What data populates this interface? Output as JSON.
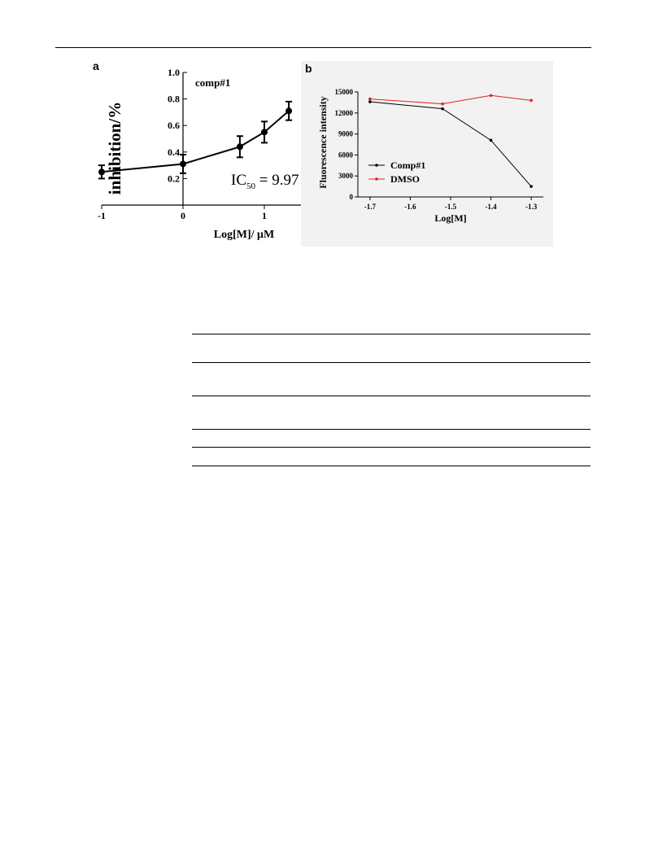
{
  "chart_data": [
    {
      "panel": "a",
      "type": "line",
      "series": [
        {
          "name": "comp#1",
          "x": [
            -1,
            0,
            0.699,
            1,
            1.301
          ],
          "y": [
            0.25,
            0.31,
            0.44,
            0.55,
            0.71
          ],
          "yerr": [
            0.05,
            0.07,
            0.08,
            0.08,
            0.07
          ]
        }
      ],
      "series_label": "comp#1",
      "ylabel": "inhibition/%",
      "xlabel": "Log[M]/ μM",
      "xlim": [
        -1,
        1.5
      ],
      "ylim": [
        0,
        1.0
      ],
      "yticks": [
        0.2,
        0.4,
        0.6,
        0.8,
        1.0
      ],
      "ytick_labels": [
        "0.2",
        "0.4",
        "0.6",
        "0.8",
        "1.0"
      ],
      "xticks": [
        -1,
        0,
        1
      ],
      "xtick_labels": [
        "-1",
        "0",
        "1"
      ],
      "annotation": {
        "prefix": "IC",
        "sub": "50",
        "suffix": " = 9.97"
      },
      "grid": false
    },
    {
      "panel": "b",
      "type": "line",
      "series": [
        {
          "name": "Comp#1",
          "color": "#000000",
          "x": [
            -1.7,
            -1.52,
            -1.4,
            -1.3
          ],
          "y": [
            13600,
            12600,
            8100,
            1500
          ]
        },
        {
          "name": "DMSO",
          "color": "#e02020",
          "x": [
            -1.7,
            -1.52,
            -1.4,
            -1.3
          ],
          "y": [
            14000,
            13300,
            14500,
            13800
          ]
        }
      ],
      "xlabel": "Log[M]",
      "ylabel": "Fluorescence intensity",
      "xlim": [
        -1.73,
        -1.27
      ],
      "ylim": [
        0,
        15000
      ],
      "xticks": [
        -1.7,
        -1.6,
        -1.5,
        -1.4,
        -1.3
      ],
      "xtick_labels": [
        "-1.7",
        "-1.6",
        "-1.5",
        "-1.4",
        "-1.3"
      ],
      "yticks": [
        0,
        3000,
        6000,
        9000,
        12000,
        15000
      ],
      "ytick_labels": [
        "0",
        "3000",
        "6000",
        "9000",
        "12000",
        "15000"
      ],
      "legend_position": "lower-left",
      "grid": false
    }
  ],
  "panels": {
    "a": "a",
    "b": "b"
  }
}
